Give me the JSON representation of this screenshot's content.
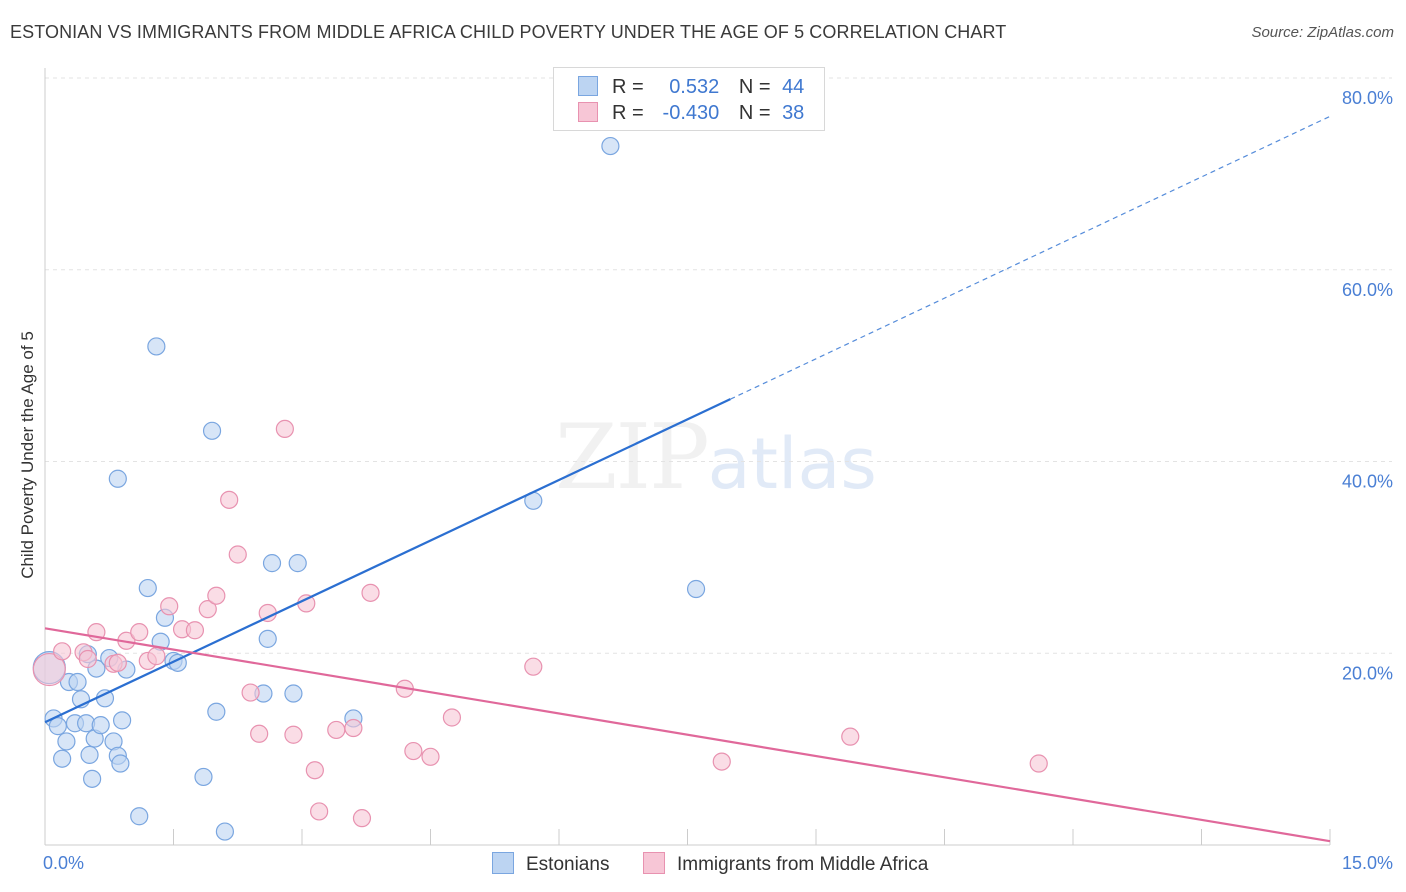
{
  "title": "ESTONIAN VS IMMIGRANTS FROM MIDDLE AFRICA CHILD POVERTY UNDER THE AGE OF 5 CORRELATION CHART",
  "source": "Source: ZipAtlas.com",
  "watermark": {
    "zip": "ZIP",
    "atlas": "atlas"
  },
  "colors": {
    "estonians_fill": "#bcd4f2",
    "estonians_stroke": "#7aa6e0",
    "estonians_line": "#2b6fd1",
    "immigrants_fill": "#f7c6d6",
    "immigrants_stroke": "#e892b0",
    "immigrants_line": "#e0689a",
    "tick_text": "#4a7fd4",
    "grid": "#e3e3e3"
  },
  "legend": {
    "rows": [
      {
        "r_label": "R =",
        "r_value": "0.532",
        "n_label": "N =",
        "n_value": "44"
      },
      {
        "r_label": "R =",
        "r_value": "-0.430",
        "n_label": "N =",
        "n_value": "38"
      }
    ]
  },
  "chart_data": {
    "type": "scatter",
    "title": "ESTONIAN VS IMMIGRANTS FROM MIDDLE AFRICA CHILD POVERTY UNDER THE AGE OF 5 CORRELATION CHART",
    "xlabel": "",
    "ylabel": "Child Poverty Under the Age of 5",
    "xlim": [
      0,
      15
    ],
    "ylim": [
      0,
      80
    ],
    "x_tick_labels": [
      "0.0%",
      "15.0%"
    ],
    "y_ticks": [
      20,
      40,
      60,
      80
    ],
    "y_tick_labels": [
      "20.0%",
      "40.0%",
      "60.0%",
      "80.0%"
    ],
    "grid": true,
    "legend_position": "bottom",
    "series": [
      {
        "name": "Estonians",
        "points": [
          [
            0.05,
            18.5
          ],
          [
            0.1,
            13.2
          ],
          [
            0.15,
            12.4
          ],
          [
            0.2,
            9.0
          ],
          [
            0.25,
            10.8
          ],
          [
            0.28,
            17.0
          ],
          [
            0.35,
            12.7
          ],
          [
            0.38,
            17.0
          ],
          [
            0.42,
            15.2
          ],
          [
            0.48,
            12.7
          ],
          [
            0.5,
            19.9
          ],
          [
            0.52,
            9.4
          ],
          [
            0.55,
            6.9
          ],
          [
            0.58,
            11.1
          ],
          [
            0.6,
            18.4
          ],
          [
            0.65,
            12.5
          ],
          [
            0.7,
            15.3
          ],
          [
            0.75,
            19.5
          ],
          [
            0.8,
            10.8
          ],
          [
            0.85,
            9.3
          ],
          [
            0.88,
            8.5
          ],
          [
            0.9,
            13.0
          ],
          [
            0.95,
            18.3
          ],
          [
            0.85,
            38.2
          ],
          [
            1.1,
            3.0
          ],
          [
            1.2,
            26.8
          ],
          [
            1.3,
            52.0
          ],
          [
            1.35,
            21.2
          ],
          [
            1.4,
            23.7
          ],
          [
            1.5,
            19.2
          ],
          [
            1.55,
            19.0
          ],
          [
            1.85,
            7.1
          ],
          [
            1.95,
            43.2
          ],
          [
            2.0,
            13.9
          ],
          [
            2.1,
            1.4
          ],
          [
            2.55,
            15.8
          ],
          [
            2.6,
            21.5
          ],
          [
            2.65,
            29.4
          ],
          [
            2.9,
            15.8
          ],
          [
            2.95,
            29.4
          ],
          [
            3.6,
            13.2
          ],
          [
            5.7,
            35.9
          ],
          [
            6.6,
            72.9
          ],
          [
            7.6,
            26.7
          ]
        ],
        "trend": {
          "x": [
            0.0,
            8.0
          ],
          "y": [
            12.8,
            46.5
          ],
          "dashed_extension": {
            "x": [
              8.0,
              15.0
            ],
            "y": [
              46.5,
              76.0
            ]
          }
        }
      },
      {
        "name": "Immigrants from Middle Africa",
        "points": [
          [
            0.05,
            18.3
          ],
          [
            0.2,
            20.2
          ],
          [
            0.45,
            20.1
          ],
          [
            0.5,
            19.4
          ],
          [
            0.6,
            22.2
          ],
          [
            0.8,
            18.9
          ],
          [
            0.85,
            19.0
          ],
          [
            0.95,
            21.3
          ],
          [
            1.1,
            22.2
          ],
          [
            1.2,
            19.2
          ],
          [
            1.3,
            19.7
          ],
          [
            1.45,
            24.9
          ],
          [
            1.6,
            22.5
          ],
          [
            1.75,
            22.4
          ],
          [
            1.9,
            24.6
          ],
          [
            2.0,
            26.0
          ],
          [
            2.15,
            36.0
          ],
          [
            2.25,
            30.3
          ],
          [
            2.4,
            15.9
          ],
          [
            2.5,
            11.6
          ],
          [
            2.6,
            24.2
          ],
          [
            2.8,
            43.4
          ],
          [
            2.9,
            11.5
          ],
          [
            3.05,
            25.2
          ],
          [
            3.15,
            7.8
          ],
          [
            3.2,
            3.5
          ],
          [
            3.4,
            12.0
          ],
          [
            3.6,
            12.2
          ],
          [
            3.7,
            2.8
          ],
          [
            3.8,
            26.3
          ],
          [
            4.2,
            16.3
          ],
          [
            4.3,
            9.8
          ],
          [
            4.5,
            9.2
          ],
          [
            4.75,
            13.3
          ],
          [
            5.7,
            18.6
          ],
          [
            7.9,
            8.7
          ],
          [
            9.4,
            11.3
          ],
          [
            11.6,
            8.5
          ]
        ],
        "trend": {
          "x": [
            0.0,
            15.0
          ],
          "y": [
            22.6,
            0.4
          ]
        }
      }
    ]
  }
}
